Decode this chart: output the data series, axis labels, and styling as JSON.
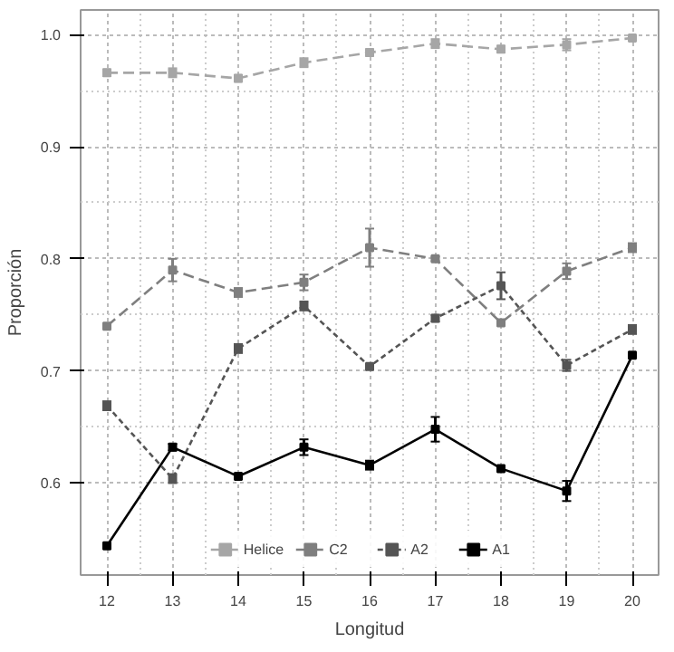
{
  "chart_data": {
    "type": "line",
    "xlabel": "Longitud",
    "ylabel": "Proporción",
    "x": [
      12,
      13,
      14,
      15,
      16,
      17,
      18,
      19,
      20
    ],
    "ylim": [
      0.518,
      1.022
    ],
    "yticks": [
      0.6,
      0.7,
      0.8,
      0.9,
      {
        "value": 1.0,
        "label": "1.0"
      }
    ],
    "xticks": [
      12,
      13,
      14,
      15,
      16,
      17,
      18,
      19,
      20
    ],
    "xlim": [
      11.6,
      20.4
    ],
    "grid": true,
    "legend": "bottom",
    "marker": "square",
    "series": [
      {
        "name": "Helice",
        "color": "#a6a6a6",
        "line_style": "dashed",
        "values": [
          0.966,
          0.966,
          0.961,
          0.975,
          0.984,
          0.992,
          0.987,
          0.991,
          0.997
        ],
        "errors": [
          0.003,
          0.004,
          0.003,
          0.004,
          0.003,
          0.004,
          0.003,
          0.005,
          0.002
        ]
      },
      {
        "name": "C2",
        "color": "#7f7f7f",
        "line_style": "dashed",
        "values": [
          0.74,
          0.79,
          0.77,
          0.779,
          0.81,
          0.8,
          0.743,
          0.789,
          0.81
        ],
        "errors": [
          0.002,
          0.01,
          0.004,
          0.007,
          0.017,
          0.002,
          0.002,
          0.007,
          0.004
        ]
      },
      {
        "name": "A2",
        "color": "#555555",
        "line_style": "dotted",
        "values": [
          0.669,
          0.604,
          0.72,
          0.758,
          0.704,
          0.747,
          0.776,
          0.705,
          0.737
        ],
        "errors": [
          0.004,
          0.004,
          0.004,
          0.004,
          0.002,
          0.003,
          0.012,
          0.005,
          0.004
        ]
      },
      {
        "name": "A1",
        "color": "#000000",
        "line_style": "solid",
        "values": [
          0.544,
          0.632,
          0.606,
          0.632,
          0.616,
          0.648,
          0.613,
          0.593,
          0.714
        ],
        "errors": [
          0.002,
          0.003,
          0.002,
          0.007,
          0.004,
          0.011,
          0.002,
          0.009,
          0.002
        ]
      }
    ]
  }
}
